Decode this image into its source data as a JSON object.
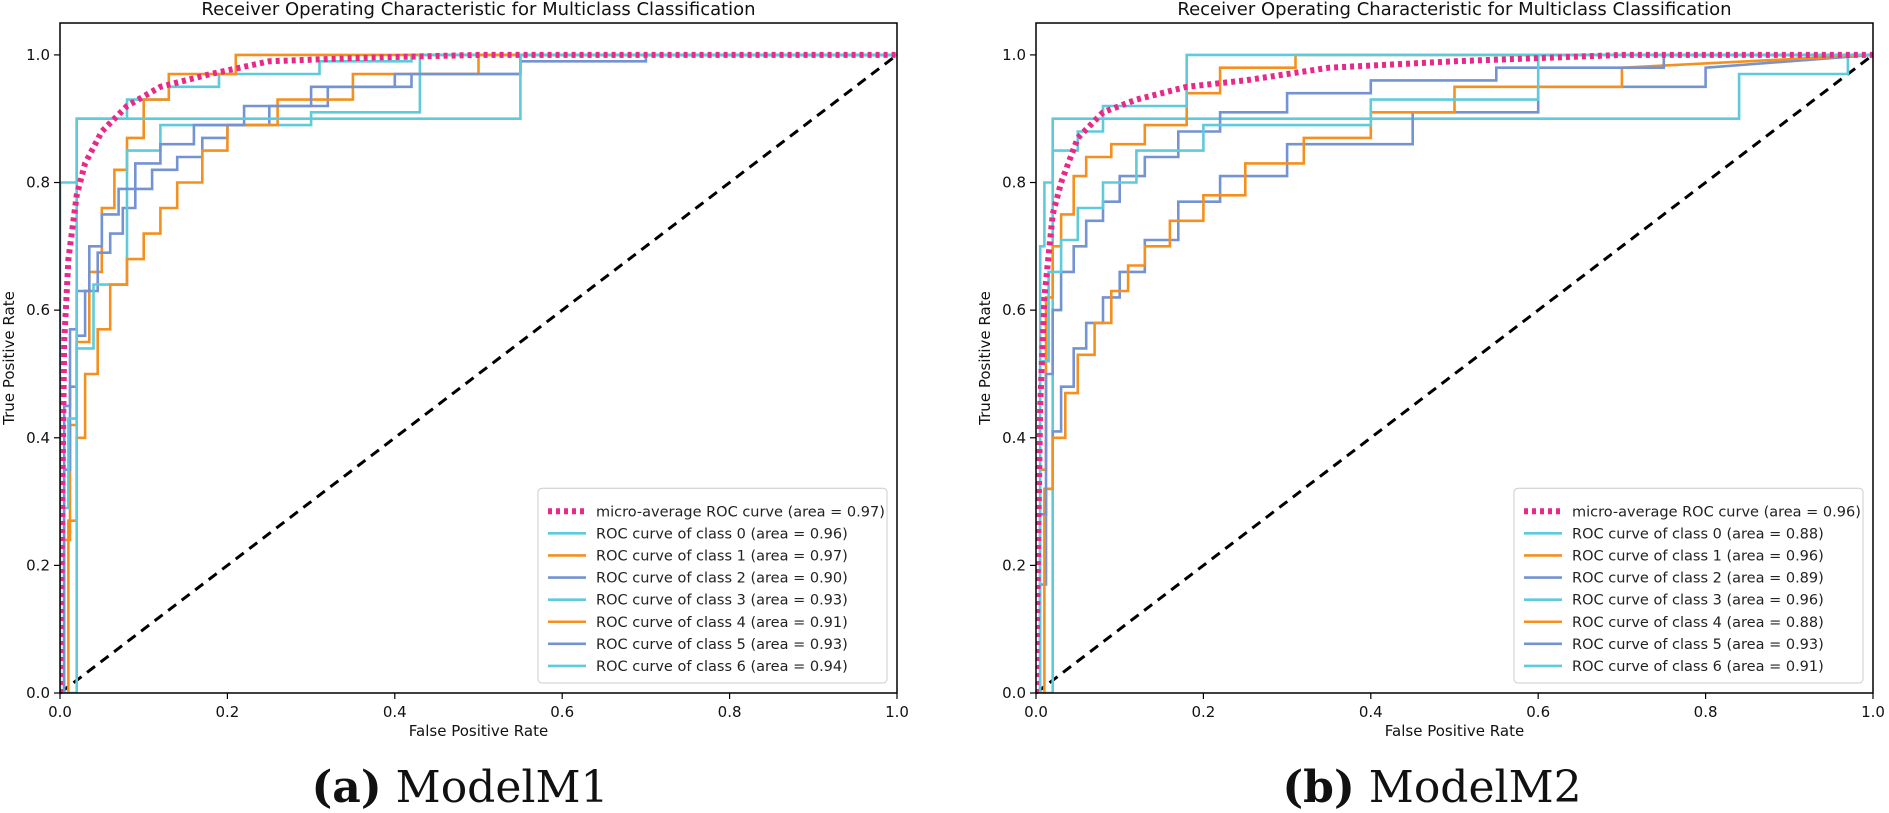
{
  "captions": [
    {
      "tag": "(a)",
      "text": "ModelM1"
    },
    {
      "tag": "(b)",
      "text": "ModelM2"
    }
  ],
  "chart_data": [
    {
      "type": "line",
      "title": "Receiver Operating Characteristic for Multiclass Classification",
      "xlabel": "False Positive Rate",
      "ylabel": "True Positive Rate",
      "xlim": [
        0.0,
        1.0
      ],
      "ylim": [
        0.0,
        1.05
      ],
      "xticks": [
        "0.0",
        "0.2",
        "0.4",
        "0.6",
        "0.8",
        "1.0"
      ],
      "yticks": [
        "0.0",
        "0.2",
        "0.4",
        "0.6",
        "0.8",
        "1.0"
      ],
      "legend_position": "lower right",
      "diagonal": {
        "x": [
          0,
          1
        ],
        "y": [
          0,
          1
        ],
        "color": "#000000",
        "dashed": true
      },
      "series": [
        {
          "name": "micro-average ROC curve (area = 0.97)",
          "color": "#e8298a",
          "style": "dotted",
          "step": false,
          "x": [
            0,
            0.005,
            0.01,
            0.02,
            0.03,
            0.05,
            0.08,
            0.12,
            0.18,
            0.25,
            0.35,
            0.5,
            0.7,
            1.0
          ],
          "y": [
            0,
            0.55,
            0.68,
            0.78,
            0.83,
            0.88,
            0.92,
            0.95,
            0.97,
            0.99,
            0.995,
            1.0,
            1.0,
            1.0
          ]
        },
        {
          "name": "ROC curve of class 0 (area = 0.96)",
          "color": "#5ecbdb",
          "style": "solid",
          "step": true,
          "x": [
            0,
            0,
            0.02,
            0.02,
            0.08,
            0.08,
            0.13,
            0.13,
            0.19,
            0.19,
            0.31,
            0.31,
            0.42,
            0.42,
            1.0
          ],
          "y": [
            0,
            0.8,
            0.8,
            0.9,
            0.9,
            0.93,
            0.93,
            0.95,
            0.95,
            0.97,
            0.97,
            0.99,
            0.99,
            1.0,
            1.0
          ]
        },
        {
          "name": "ROC curve of class 1 (area = 0.97)",
          "color": "#f5901f",
          "style": "solid",
          "step": true,
          "x": [
            0,
            0.005,
            0.005,
            0.012,
            0.012,
            0.02,
            0.02,
            0.035,
            0.035,
            0.05,
            0.05,
            0.065,
            0.065,
            0.08,
            0.08,
            0.1,
            0.1,
            0.13,
            0.13,
            0.21,
            0.21,
            1.0
          ],
          "y": [
            0,
            0,
            0.24,
            0.24,
            0.42,
            0.42,
            0.55,
            0.55,
            0.66,
            0.66,
            0.76,
            0.76,
            0.82,
            0.82,
            0.87,
            0.87,
            0.93,
            0.93,
            0.97,
            0.97,
            1.0,
            1.0
          ]
        },
        {
          "name": "ROC curve of class 2 (area = 0.90)",
          "color": "#7493d2",
          "style": "solid",
          "step": true,
          "x": [
            0,
            0.005,
            0.005,
            0.012,
            0.012,
            0.02,
            0.02,
            0.03,
            0.03,
            0.045,
            0.045,
            0.06,
            0.06,
            0.075,
            0.075,
            0.09,
            0.09,
            0.11,
            0.11,
            0.14,
            0.14,
            0.17,
            0.17,
            0.2,
            0.2,
            0.25,
            0.25,
            0.32,
            0.32,
            0.42,
            0.42,
            0.55,
            0.55,
            1.0
          ],
          "y": [
            0,
            0,
            0.35,
            0.35,
            0.48,
            0.48,
            0.56,
            0.56,
            0.63,
            0.63,
            0.69,
            0.69,
            0.72,
            0.72,
            0.76,
            0.76,
            0.79,
            0.79,
            0.82,
            0.82,
            0.84,
            0.84,
            0.87,
            0.87,
            0.89,
            0.89,
            0.92,
            0.92,
            0.95,
            0.95,
            0.97,
            0.97,
            1.0,
            1.0
          ]
        },
        {
          "name": "ROC curve of class 3 (area = 0.93)",
          "color": "#5ecbdb",
          "style": "solid",
          "step": true,
          "x": [
            0,
            0.005,
            0.005,
            0.01,
            0.01,
            0.02,
            0.02,
            0.04,
            0.04,
            0.08,
            0.08,
            0.12,
            0.12,
            0.3,
            0.3,
            0.43,
            0.43,
            1.0
          ],
          "y": [
            0,
            0,
            0.29,
            0.29,
            0.43,
            0.43,
            0.54,
            0.54,
            0.64,
            0.64,
            0.85,
            0.85,
            0.89,
            0.89,
            0.91,
            0.91,
            1.0,
            1.0
          ]
        },
        {
          "name": "ROC curve of class 4 (area = 0.91)",
          "color": "#f5901f",
          "style": "solid",
          "step": true,
          "x": [
            0,
            0.01,
            0.01,
            0.02,
            0.02,
            0.03,
            0.03,
            0.045,
            0.045,
            0.06,
            0.06,
            0.08,
            0.08,
            0.1,
            0.1,
            0.12,
            0.12,
            0.14,
            0.14,
            0.17,
            0.17,
            0.2,
            0.2,
            0.26,
            0.26,
            0.35,
            0.35,
            0.5,
            0.5,
            1.0
          ],
          "y": [
            0,
            0,
            0.27,
            0.27,
            0.4,
            0.4,
            0.5,
            0.5,
            0.57,
            0.57,
            0.64,
            0.64,
            0.68,
            0.68,
            0.72,
            0.72,
            0.76,
            0.76,
            0.8,
            0.8,
            0.85,
            0.85,
            0.89,
            0.89,
            0.93,
            0.93,
            0.97,
            0.97,
            1.0,
            1.0
          ]
        },
        {
          "name": "ROC curve of class 5 (area = 0.93)",
          "color": "#7493d2",
          "style": "solid",
          "step": true,
          "x": [
            0,
            0.005,
            0.005,
            0.012,
            0.012,
            0.02,
            0.02,
            0.035,
            0.035,
            0.05,
            0.05,
            0.07,
            0.07,
            0.09,
            0.09,
            0.12,
            0.12,
            0.16,
            0.16,
            0.22,
            0.22,
            0.3,
            0.3,
            0.4,
            0.4,
            0.55,
            0.55,
            0.7,
            0.7,
            1.0
          ],
          "y": [
            0,
            0,
            0.45,
            0.45,
            0.57,
            0.57,
            0.63,
            0.63,
            0.7,
            0.7,
            0.75,
            0.75,
            0.79,
            0.79,
            0.83,
            0.83,
            0.86,
            0.86,
            0.89,
            0.89,
            0.92,
            0.92,
            0.95,
            0.95,
            0.97,
            0.97,
            0.99,
            0.99,
            1.0,
            1.0
          ]
        },
        {
          "name": "ROC curve of class 6 (area = 0.94)",
          "color": "#5ecbdb",
          "style": "solid",
          "step": true,
          "x": [
            0,
            0.02,
            0.02,
            0.08,
            0.08,
            0.3,
            0.3,
            0.55,
            0.55,
            1.0
          ],
          "y": [
            0,
            0,
            0.9,
            0.9,
            0.9,
            0.9,
            0.9,
            0.9,
            1.0,
            1.0
          ]
        }
      ]
    },
    {
      "type": "line",
      "title": "Receiver Operating Characteristic for Multiclass Classification",
      "xlabel": "False Positive Rate",
      "ylabel": "True Positive Rate",
      "xlim": [
        0.0,
        1.0
      ],
      "ylim": [
        0.0,
        1.05
      ],
      "xticks": [
        "0.0",
        "0.2",
        "0.4",
        "0.6",
        "0.8",
        "1.0"
      ],
      "yticks": [
        "0.0",
        "0.2",
        "0.4",
        "0.6",
        "0.8",
        "1.0"
      ],
      "legend_position": "lower right",
      "diagonal": {
        "x": [
          0,
          1
        ],
        "y": [
          0,
          1
        ],
        "color": "#000000",
        "dashed": true
      },
      "series": [
        {
          "name": "micro-average ROC curve (area = 0.96)",
          "color": "#e8298a",
          "style": "dotted",
          "step": false,
          "x": [
            0,
            0.005,
            0.01,
            0.02,
            0.03,
            0.05,
            0.08,
            0.12,
            0.18,
            0.25,
            0.35,
            0.5,
            0.7,
            1.0
          ],
          "y": [
            0,
            0.45,
            0.62,
            0.75,
            0.8,
            0.87,
            0.91,
            0.93,
            0.95,
            0.96,
            0.98,
            0.99,
            1.0,
            1.0
          ]
        },
        {
          "name": "ROC curve of class 0 (area = 0.88)",
          "color": "#5ecbdb",
          "style": "solid",
          "step": true,
          "x": [
            0,
            0.02,
            0.02,
            0.1,
            0.1,
            0.3,
            0.3,
            0.84,
            0.84,
            0.97,
            0.97,
            1.0
          ],
          "y": [
            0,
            0,
            0.9,
            0.9,
            0.9,
            0.9,
            0.9,
            0.9,
            0.97,
            0.97,
            1.0,
            1.0
          ]
        },
        {
          "name": "ROC curve of class 1 (area = 0.96)",
          "color": "#f5901f",
          "style": "solid",
          "step": true,
          "x": [
            0,
            0.005,
            0.005,
            0.012,
            0.012,
            0.02,
            0.02,
            0.03,
            0.03,
            0.045,
            0.045,
            0.06,
            0.06,
            0.09,
            0.09,
            0.13,
            0.13,
            0.18,
            0.18,
            0.22,
            0.22,
            0.31,
            0.31,
            1.0
          ],
          "y": [
            0,
            0,
            0.35,
            0.35,
            0.62,
            0.62,
            0.7,
            0.7,
            0.75,
            0.75,
            0.81,
            0.81,
            0.84,
            0.84,
            0.86,
            0.86,
            0.89,
            0.89,
            0.94,
            0.94,
            0.98,
            0.98,
            1.0,
            1.0
          ]
        },
        {
          "name": "ROC curve of class 2 (area = 0.89)",
          "color": "#7493d2",
          "style": "solid",
          "step": true,
          "x": [
            0,
            0.005,
            0.005,
            0.012,
            0.012,
            0.02,
            0.02,
            0.03,
            0.03,
            0.045,
            0.045,
            0.06,
            0.06,
            0.08,
            0.08,
            0.1,
            0.1,
            0.13,
            0.13,
            0.17,
            0.17,
            0.22,
            0.22,
            0.3,
            0.3,
            0.45,
            0.45,
            0.6,
            0.6,
            0.8,
            0.8,
            1.0
          ],
          "y": [
            0,
            0,
            0.17,
            0.17,
            0.32,
            0.32,
            0.41,
            0.41,
            0.48,
            0.48,
            0.54,
            0.54,
            0.58,
            0.58,
            0.62,
            0.62,
            0.66,
            0.66,
            0.71,
            0.71,
            0.77,
            0.77,
            0.81,
            0.81,
            0.86,
            0.86,
            0.91,
            0.91,
            0.95,
            0.95,
            0.98,
            1.0
          ]
        },
        {
          "name": "ROC curve of class 3 (area = 0.96)",
          "color": "#5ecbdb",
          "style": "solid",
          "step": true,
          "x": [
            0,
            0.005,
            0.005,
            0.01,
            0.01,
            0.02,
            0.02,
            0.05,
            0.05,
            0.08,
            0.08,
            0.18,
            0.18,
            1.0
          ],
          "y": [
            0,
            0,
            0.7,
            0.7,
            0.8,
            0.8,
            0.85,
            0.85,
            0.88,
            0.88,
            0.92,
            0.92,
            1.0,
            1.0
          ]
        },
        {
          "name": "ROC curve of class 4 (area = 0.88)",
          "color": "#f5901f",
          "style": "solid",
          "step": true,
          "x": [
            0,
            0.01,
            0.01,
            0.02,
            0.02,
            0.035,
            0.035,
            0.05,
            0.05,
            0.07,
            0.07,
            0.09,
            0.09,
            0.11,
            0.11,
            0.13,
            0.13,
            0.16,
            0.16,
            0.2,
            0.2,
            0.25,
            0.25,
            0.32,
            0.32,
            0.4,
            0.4,
            0.5,
            0.5,
            0.7,
            0.7,
            1.0
          ],
          "y": [
            0,
            0,
            0.32,
            0.32,
            0.4,
            0.4,
            0.47,
            0.47,
            0.53,
            0.53,
            0.58,
            0.58,
            0.63,
            0.63,
            0.67,
            0.67,
            0.7,
            0.7,
            0.74,
            0.74,
            0.78,
            0.78,
            0.83,
            0.83,
            0.87,
            0.87,
            0.91,
            0.91,
            0.95,
            0.95,
            0.98,
            1.0
          ]
        },
        {
          "name": "ROC curve of class 5 (area = 0.93)",
          "color": "#7493d2",
          "style": "solid",
          "step": true,
          "x": [
            0,
            0.005,
            0.005,
            0.012,
            0.012,
            0.02,
            0.02,
            0.03,
            0.03,
            0.045,
            0.045,
            0.06,
            0.06,
            0.08,
            0.08,
            0.1,
            0.1,
            0.13,
            0.13,
            0.17,
            0.17,
            0.22,
            0.22,
            0.3,
            0.3,
            0.4,
            0.4,
            0.55,
            0.55,
            0.75,
            0.75,
            1.0
          ],
          "y": [
            0,
            0,
            0.28,
            0.28,
            0.5,
            0.5,
            0.6,
            0.6,
            0.66,
            0.66,
            0.7,
            0.7,
            0.74,
            0.74,
            0.77,
            0.77,
            0.81,
            0.81,
            0.84,
            0.84,
            0.88,
            0.88,
            0.91,
            0.91,
            0.94,
            0.94,
            0.96,
            0.96,
            0.98,
            0.98,
            1.0,
            1.0
          ]
        },
        {
          "name": "ROC curve of class 6 (area = 0.91)",
          "color": "#5ecbdb",
          "style": "solid",
          "step": true,
          "x": [
            0,
            0.005,
            0.005,
            0.015,
            0.015,
            0.03,
            0.03,
            0.05,
            0.05,
            0.08,
            0.08,
            0.12,
            0.12,
            0.2,
            0.2,
            0.4,
            0.4,
            0.6,
            0.6,
            1.0
          ],
          "y": [
            0,
            0,
            0.52,
            0.52,
            0.66,
            0.66,
            0.71,
            0.71,
            0.76,
            0.76,
            0.8,
            0.8,
            0.85,
            0.85,
            0.89,
            0.89,
            0.93,
            0.93,
            1.0,
            1.0
          ]
        }
      ]
    }
  ]
}
